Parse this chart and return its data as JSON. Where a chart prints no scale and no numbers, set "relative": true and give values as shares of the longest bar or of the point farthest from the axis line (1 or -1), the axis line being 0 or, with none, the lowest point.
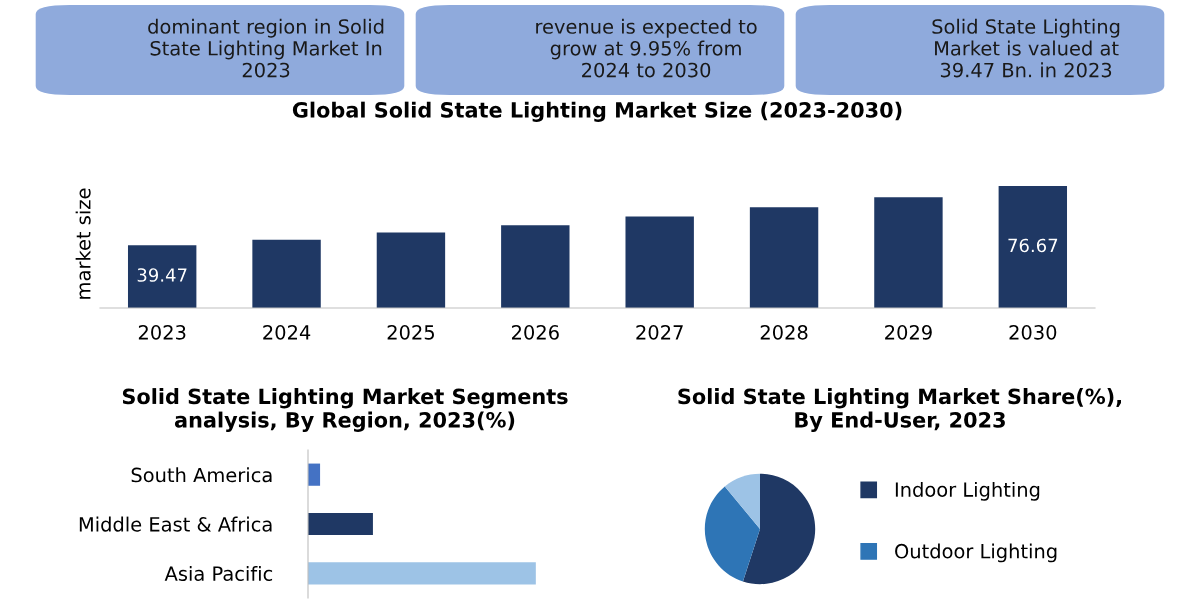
{
  "chart_data": [
    {
      "type": "other",
      "annotations": [
        "dominant region in Solid State Lighting Market In 2023",
        "revenue is expected to grow at 9.95% from 2024 to 2030",
        "Solid State Lighting Market is valued at 39.47 Bn. in 2023"
      ]
    },
    {
      "type": "bar",
      "title": "Global Solid State Lighting Market Size (2023-2030)",
      "ylabel": "market size",
      "categories": [
        "2023",
        "2024",
        "2025",
        "2026",
        "2027",
        "2028",
        "2029",
        "2030"
      ],
      "values": [
        39.47,
        43,
        47.5,
        52,
        57.6,
        63.3,
        69.7,
        76.67
      ],
      "color": "#1f3864",
      "value_labels": [
        "39.47",
        null,
        null,
        null,
        null,
        null,
        null,
        "76.67"
      ],
      "grid": false,
      "legend": false
    },
    {
      "type": "bar",
      "orientation": "horizontal",
      "relative": true,
      "title": "Solid State Lighting Market Segments analysis, By Region, 2023(%)",
      "categories": [
        "South America",
        "Middle East & Africa",
        "Asia Pacific"
      ],
      "values": [
        0.053,
        0.285,
        1
      ],
      "colors": [
        "#4472c4",
        "#1f3864",
        "#9dc3e6"
      ],
      "grid": false,
      "legend": false
    },
    {
      "type": "pie",
      "title": "Solid State Lighting Market Share(%), By End-User, 2023",
      "categories": [
        "Indoor Lighting",
        "Outdoor Lighting",
        null
      ],
      "values": [
        55,
        34,
        11
      ],
      "colors": [
        "#1f3864",
        "#2e75b6",
        "#9dc3e6"
      ],
      "legend": "right"
    }
  ]
}
